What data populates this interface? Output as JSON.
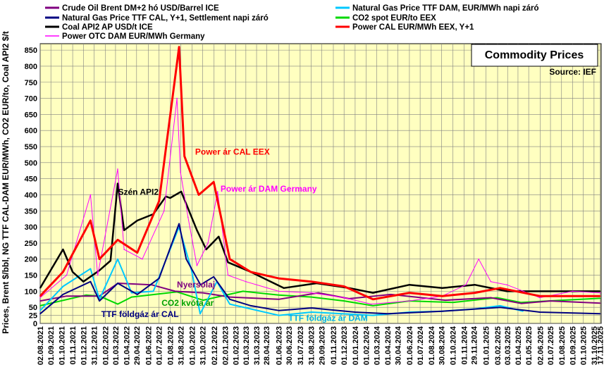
{
  "chart_data": {
    "type": "line",
    "title": "Commodity Prices",
    "source": "Source:  IEF",
    "ylabel": "Prices, Brent $/bbl, NG TTF CAL-DAM EUR/MWh, CO2 EUR/to, Coal API2 $/t",
    "ylim": [
      0,
      870
    ],
    "yticks": [
      0,
      25,
      50,
      100,
      150,
      200,
      250,
      300,
      350,
      400,
      450,
      500,
      550,
      600,
      650,
      700,
      750,
      800,
      850
    ],
    "xlim": [
      "2021-08-02",
      "2025-11-20"
    ],
    "xticks": [
      "02.08.2021",
      "01.09.2021",
      "01.10.2021",
      "01.11.2021",
      "01.12.2021",
      "31.12.2021",
      "01.02.2022",
      "01.03.2022",
      "01.04.2022",
      "29.04.2022",
      "01.06.2022",
      "01.07.2022",
      "01.08.2022",
      "31.08.2022",
      "01.10.2022",
      "31.10.2022",
      "02.12.2022",
      "02.01.2023",
      "01.02.2023",
      "01.03.2023",
      "31.03.2023",
      "28.04.2023",
      "01.06.2023",
      "30.06.2023",
      "31.07.2023",
      "31.08.2023",
      "29.09.2023",
      "01.11.2023",
      "01.12.2023",
      "01.01.2024",
      "01.02.2024",
      "01.03.2024",
      "01.04.2024",
      "30.04.2024",
      "01.06.2024",
      "01.07.2024",
      "01.08.2024",
      "30.08.2024",
      "01.10.2024",
      "01.11.2024",
      "29.11.2024",
      "01.01.2025",
      "03.02.2025",
      "03.03.2025",
      "01.04.2025",
      "01.05.2025",
      "02.06.2025",
      "01.07.2025",
      "01.08.2025",
      "01.09.2025",
      "01.10.2025",
      "31.10.2025",
      "17.11.2025"
    ],
    "grid": true,
    "plot_background": "#ffffc0",
    "legend_position": "top",
    "series": [
      {
        "name": "Crude Oil Brent DM+2 hó USD/Barrel ICE",
        "color": "#800080",
        "width": 2,
        "x": [
          "2021-08-02",
          "2021-10-15",
          "2022-01-15",
          "2022-03-08",
          "2022-06-10",
          "2022-08-15",
          "2022-11-01",
          "2023-01-15",
          "2023-06-01",
          "2023-09-20",
          "2023-12-15",
          "2024-04-10",
          "2024-09-10",
          "2025-01-15",
          "2025-04-10",
          "2025-07-01",
          "2025-11-17"
        ],
        "values": [
          70,
          85,
          85,
          125,
          120,
          100,
          95,
          82,
          75,
          95,
          77,
          90,
          72,
          80,
          62,
          70,
          63
        ]
      },
      {
        "name": "Natural Gas Price TTF DAM, EUR/MWh napi záró",
        "color": "#00c8ff",
        "width": 2,
        "x": [
          "2021-08-02",
          "2021-10-05",
          "2021-12-21",
          "2022-01-15",
          "2022-03-07",
          "2022-04-15",
          "2022-06-15",
          "2022-08-26",
          "2022-09-30",
          "2022-10-24",
          "2022-12-10",
          "2023-01-15",
          "2023-03-15",
          "2023-06-01",
          "2023-09-01",
          "2024-02-20",
          "2024-06-01",
          "2024-09-01",
          "2024-12-01",
          "2025-02-10",
          "2025-04-15"
        ],
        "values": [
          40,
          115,
          170,
          75,
          200,
          95,
          100,
          300,
          165,
          30,
          130,
          60,
          45,
          25,
          35,
          25,
          35,
          38,
          45,
          55,
          38
        ]
      },
      {
        "name": "Natural Gas Price TTF CAL, Y+1, Settlement napi záró",
        "color": "#000080",
        "width": 2,
        "x": [
          "2021-08-02",
          "2021-10-05",
          "2021-12-21",
          "2022-01-15",
          "2022-03-07",
          "2022-05-01",
          "2022-07-01",
          "2022-08-26",
          "2022-09-15",
          "2022-10-25",
          "2022-12-01",
          "2023-01-15",
          "2023-03-15",
          "2023-06-01",
          "2023-09-01",
          "2024-01-01",
          "2024-04-01",
          "2024-09-01",
          "2025-02-10",
          "2025-06-01",
          "2025-11-17"
        ],
        "values": [
          30,
          90,
          130,
          70,
          125,
          90,
          140,
          310,
          200,
          120,
          145,
          75,
          55,
          40,
          48,
          35,
          30,
          38,
          50,
          35,
          30
        ]
      },
      {
        "name": "CO2 spot EUR/to EEX",
        "color": "#00d800",
        "width": 2,
        "x": [
          "2021-08-02",
          "2021-12-08",
          "2022-01-15",
          "2022-03-07",
          "2022-04-15",
          "2022-08-20",
          "2022-11-01",
          "2023-02-21",
          "2023-06-01",
          "2023-09-01",
          "2023-12-01",
          "2024-02-20",
          "2024-06-01",
          "2024-10-01",
          "2025-02-01",
          "2025-04-10",
          "2025-08-01",
          "2025-11-17"
        ],
        "values": [
          55,
          88,
          85,
          60,
          82,
          98,
          72,
          100,
          88,
          82,
          70,
          55,
          70,
          65,
          80,
          65,
          72,
          78
        ]
      },
      {
        "name": "Coal API2 AP USD/t ICE",
        "color": "#000000",
        "width": 2.5,
        "x": [
          "2021-08-02",
          "2021-10-05",
          "2021-11-01",
          "2021-12-01",
          "2022-01-15",
          "2022-02-15",
          "2022-03-07",
          "2022-03-25",
          "2022-05-01",
          "2022-06-15",
          "2022-07-20",
          "2022-08-01",
          "2022-09-01",
          "2022-10-15",
          "2022-11-10",
          "2022-12-15",
          "2023-01-10",
          "2023-03-15",
          "2023-06-15",
          "2023-09-15",
          "2023-12-15",
          "2024-02-20",
          "2024-06-01",
          "2024-09-01",
          "2024-12-01",
          "2025-03-01",
          "2025-06-01",
          "2025-09-01",
          "2025-11-17"
        ],
        "values": [
          110,
          230,
          160,
          130,
          165,
          195,
          435,
          290,
          320,
          340,
          395,
          390,
          410,
          290,
          230,
          270,
          190,
          160,
          110,
          125,
          110,
          95,
          120,
          110,
          120,
          100,
          100,
          100,
          100
        ]
      },
      {
        "name": "Power CAL EUR/MWh EEX, Y+1",
        "color": "#ff0000",
        "width": 3,
        "x": [
          "2021-08-02",
          "2021-10-05",
          "2021-12-21",
          "2022-01-15",
          "2022-03-07",
          "2022-05-01",
          "2022-07-01",
          "2022-08-26",
          "2022-09-10",
          "2022-10-20",
          "2022-12-01",
          "2023-01-15",
          "2023-03-15",
          "2023-06-01",
          "2023-09-01",
          "2023-12-01",
          "2024-02-20",
          "2024-06-01",
          "2024-09-01",
          "2024-12-01",
          "2025-02-10",
          "2025-06-01",
          "2025-11-17"
        ],
        "values": [
          85,
          160,
          320,
          200,
          260,
          220,
          380,
          860,
          520,
          400,
          440,
          200,
          160,
          140,
          130,
          115,
          75,
          95,
          85,
          95,
          110,
          85,
          85
        ]
      },
      {
        "name": "Power OTC DAM EUR/MWh Germany",
        "color": "#ff00ff",
        "width": 1,
        "x": [
          "2021-08-02",
          "2021-10-15",
          "2021-12-21",
          "2022-01-10",
          "2022-03-07",
          "2022-03-25",
          "2022-05-15",
          "2022-07-15",
          "2022-08-20",
          "2022-08-30",
          "2022-09-20",
          "2022-10-15",
          "2022-11-15",
          "2022-12-12",
          "2023-01-10",
          "2023-03-01",
          "2023-06-01",
          "2023-09-01",
          "2023-12-01",
          "2024-02-15",
          "2024-06-01",
          "2024-09-01",
          "2024-11-06",
          "2024-12-12",
          "2025-01-15",
          "2025-03-01",
          "2025-06-01",
          "2025-09-01",
          "2025-11-17"
        ],
        "values": [
          80,
          150,
          400,
          150,
          480,
          230,
          200,
          350,
          700,
          470,
          330,
          180,
          250,
          410,
          150,
          130,
          100,
          95,
          80,
          60,
          70,
          85,
          120,
          200,
          130,
          120,
          80,
          100,
          95
        ]
      }
    ],
    "annotations": [
      {
        "text": "Power ár CAL EEX",
        "color": "#ff0000",
        "x": "2022-10-10",
        "y": 525
      },
      {
        "text": "Power ár DAM Germany",
        "color": "#ff00ff",
        "x": "2022-12-20",
        "y": 410
      },
      {
        "text": "Szén API2",
        "color": "#000000",
        "x": "2022-03-08",
        "y": 400
      },
      {
        "text": "Nyersolaj",
        "color": "#800080",
        "x": "2022-08-20",
        "y": 112
      },
      {
        "text": "CO2 kvóta ár",
        "color": "#00a000",
        "x": "2022-07-08",
        "y": 55
      },
      {
        "text": "TTF földgáz ár CAL",
        "color": "#000080",
        "x": "2022-01-20",
        "y": 20
      },
      {
        "text": "TTF földgáz ár DAM",
        "color": "#00b0e8",
        "x": "2023-06-28",
        "y": 8
      }
    ]
  }
}
